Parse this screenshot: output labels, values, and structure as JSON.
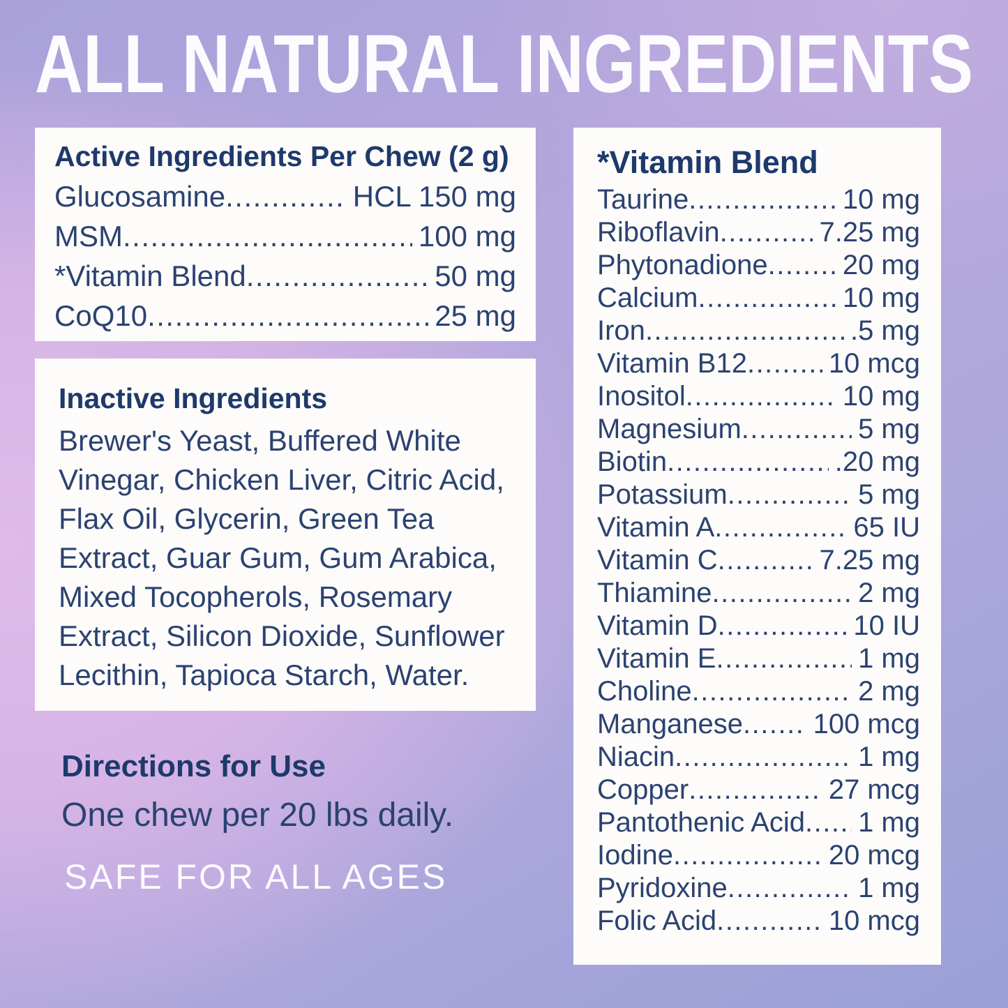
{
  "page": {
    "title": "ALL NATURAL INGREDIENTS"
  },
  "leader_dots": "..........................................................................................................",
  "active_box": {
    "heading": "Active Ingredients Per Chew (2 g)",
    "rows": [
      {
        "name": "Glucosamine",
        "value": "HCL 150 mg"
      },
      {
        "name": "MSM",
        "value": "100 mg"
      },
      {
        "name": "*Vitamin Blend",
        "value": "50 mg"
      },
      {
        "name": "CoQ10",
        "value": "25 mg"
      }
    ]
  },
  "inactive_box": {
    "heading": "Inactive Ingredients",
    "body": "Brewer's Yeast, Buffered White Vinegar, Chicken Liver, Citric Acid, Flax Oil, Glycerin, Green Tea Extract, Guar Gum, Gum Arabica, Mixed Tocopherols, Rosemary Extract, Silicon Dioxide, Sunflower Lecithin, Tapioca Starch, Water."
  },
  "directions": {
    "heading": "Directions for Use",
    "body": "One chew per 20 lbs daily.",
    "note": "SAFE FOR ALL AGES"
  },
  "vitamin_box": {
    "heading": "*Vitamin Blend",
    "rows": [
      {
        "name": "Taurine",
        "value": "10 mg"
      },
      {
        "name": "Riboflavin",
        "value": "7.25 mg"
      },
      {
        "name": "Phytonadione",
        "value": "20 mg"
      },
      {
        "name": "Calcium",
        "value": "10 mg"
      },
      {
        "name": "Iron",
        "value": ".5 mg"
      },
      {
        "name": "Vitamin B12",
        "value": "10 mcg"
      },
      {
        "name": "Inositol",
        "value": "10 mg"
      },
      {
        "name": "Magnesium",
        "value": "5 mg"
      },
      {
        "name": "Biotin",
        "value": ".20 mg"
      },
      {
        "name": "Potassium",
        "value": "5 mg"
      },
      {
        "name": "Vitamin A",
        "value": "65 IU"
      },
      {
        "name": "Vitamin C",
        "value": "7.25 mg"
      },
      {
        "name": "Thiamine",
        "value": "2 mg"
      },
      {
        "name": "Vitamin D",
        "value": "10 IU"
      },
      {
        "name": "Vitamin E",
        "value": "1 mg"
      },
      {
        "name": "Choline",
        "value": "2 mg"
      },
      {
        "name": "Manganese",
        "value": "100 mcg"
      },
      {
        "name": "Niacin",
        "value": "1 mg"
      },
      {
        "name": "Copper",
        "value": "27 mcg"
      },
      {
        "name": "Pantothenic Acid",
        "value": "1 mg"
      },
      {
        "name": "Iodine",
        "value": "20 mcg"
      },
      {
        "name": "Pyridoxine",
        "value": "1 mg"
      },
      {
        "name": "Folic Acid",
        "value": "10 mcg"
      }
    ]
  },
  "colors": {
    "heading_text": "#1e396b",
    "body_text": "#2b4271",
    "box_background": "#fdfcfa",
    "title_text": "#fcfcfe",
    "background_gradient": [
      "#a9a1da",
      "#c0abdf",
      "#ddb9e9",
      "#d5b4e5",
      "#cbb2e2",
      "#99a0d6"
    ]
  }
}
